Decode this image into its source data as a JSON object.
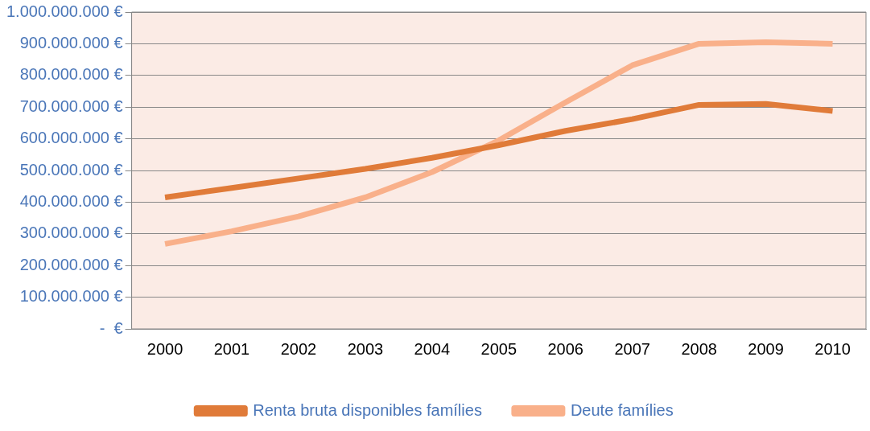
{
  "chart_data": {
    "type": "line",
    "categories": [
      "2000",
      "2001",
      "2002",
      "2003",
      "2004",
      "2005",
      "2006",
      "2007",
      "2008",
      "2009",
      "2010"
    ],
    "series": [
      {
        "name": "Renta bruta disponibles famílies",
        "color": "#e07b39",
        "values": [
          415000000,
          445000000,
          475000000,
          505000000,
          540000000,
          580000000,
          625000000,
          662000000,
          707000000,
          710000000,
          688000000
        ]
      },
      {
        "name": "Deute famílies",
        "color": "#f9b08a",
        "values": [
          268000000,
          308000000,
          355000000,
          415000000,
          495000000,
          595000000,
          715000000,
          832000000,
          900000000,
          905000000,
          900000000
        ]
      }
    ],
    "ylim": [
      0,
      1000000000
    ],
    "yticks": [
      {
        "value": 0,
        "label": "-  €"
      },
      {
        "value": 100000000,
        "label": "100.000.000 €"
      },
      {
        "value": 200000000,
        "label": "200.000.000 €"
      },
      {
        "value": 300000000,
        "label": "300.000.000 €"
      },
      {
        "value": 400000000,
        "label": "400.000.000 €"
      },
      {
        "value": 500000000,
        "label": "500.000.000 €"
      },
      {
        "value": 600000000,
        "label": "600.000.000 €"
      },
      {
        "value": 700000000,
        "label": "700.000.000 €"
      },
      {
        "value": 800000000,
        "label": "800.000.000 €"
      },
      {
        "value": 900000000,
        "label": "900.000.000 €"
      },
      {
        "value": 1000000000,
        "label": "1.000.000.000 €"
      }
    ],
    "grid": "y",
    "legend": "bottom",
    "marker": "none",
    "line_style": "solid"
  }
}
